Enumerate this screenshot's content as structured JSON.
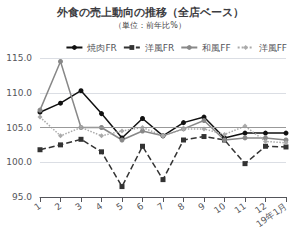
{
  "chart_data": {
    "type": "line",
    "title": "外食の売上動向の推移（全店ベース）",
    "subtitle": "（単位：前年比%）",
    "categories": [
      "1",
      "2",
      "3",
      "4",
      "5",
      "6",
      "7",
      "8",
      "9",
      "10",
      "11",
      "12",
      "19年1月"
    ],
    "series": [
      {
        "name": "焼肉FR",
        "color": "#111111",
        "line_style": "solid",
        "marker": "circle",
        "values": [
          107.2,
          108.5,
          110.3,
          107.0,
          103.5,
          106.3,
          103.8,
          105.7,
          106.5,
          103.5,
          104.2,
          104.2,
          104.2
        ]
      },
      {
        "name": "洋風FR",
        "color": "#333333",
        "line_style": "dashed",
        "marker": "square",
        "values": [
          101.8,
          102.5,
          103.3,
          101.5,
          96.5,
          102.3,
          97.5,
          103.2,
          103.7,
          103.2,
          99.8,
          102.3,
          102.2
        ]
      },
      {
        "name": "和風FF",
        "color": "#888888",
        "line_style": "solid",
        "marker": "circle",
        "values": [
          107.5,
          114.5,
          105.0,
          105.0,
          103.2,
          104.5,
          103.8,
          104.8,
          106.0,
          103.2,
          103.5,
          103.5,
          103.2
        ]
      },
      {
        "name": "洋風FF",
        "color": "#aaaaaa",
        "line_style": "dotted",
        "marker": "diamond",
        "values": [
          106.5,
          103.8,
          105.0,
          103.8,
          104.5,
          105.0,
          103.8,
          104.8,
          104.8,
          104.0,
          105.2,
          103.0,
          102.8
        ]
      }
    ],
    "reference_line": {
      "value": 105.0,
      "color": "#999999"
    },
    "ylim": [
      95.0,
      115.0
    ],
    "yticks": [
      {
        "value": 95.0,
        "label": "95.0"
      },
      {
        "value": 100.0,
        "label": "100.0"
      },
      {
        "value": 105.0,
        "label": "105.0"
      },
      {
        "value": 110.0,
        "label": "110.0"
      },
      {
        "value": 115.0,
        "label": "115.0"
      }
    ],
    "grid": true,
    "legend": "upper right"
  }
}
